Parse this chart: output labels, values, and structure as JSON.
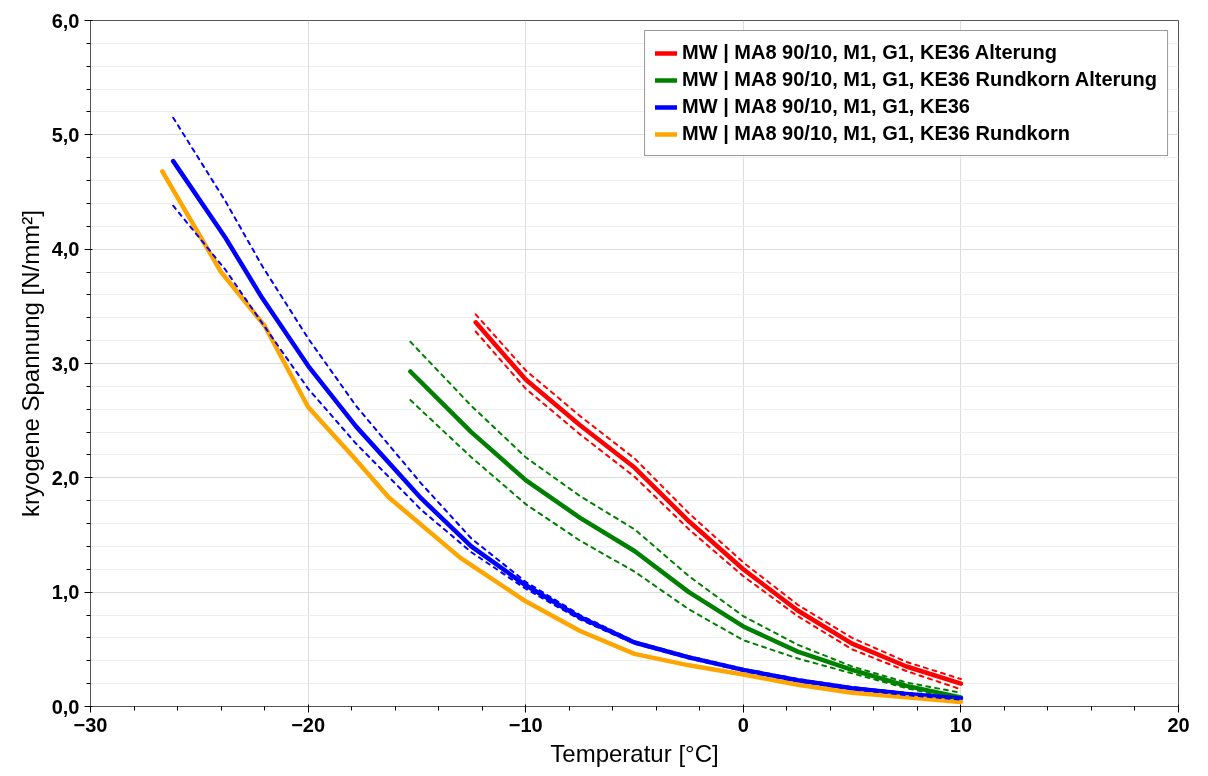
{
  "chart_data": {
    "type": "line",
    "xlabel": "Temperatur [°C]",
    "ylabel": "kryogene Spannung [N/mm²]",
    "xlim": [
      -30,
      20
    ],
    "ylim": [
      0,
      6
    ],
    "xticks": [
      -30,
      -20,
      -10,
      0,
      10,
      20
    ],
    "yticks": [
      {
        "value": 0,
        "label": "0,0"
      },
      {
        "value": 1,
        "label": "1,0"
      },
      {
        "value": 2,
        "label": "2,0"
      },
      {
        "value": 3,
        "label": "3,0"
      },
      {
        "value": 4,
        "label": "4,0"
      },
      {
        "value": 5,
        "label": "5,0"
      },
      {
        "value": 6,
        "label": "6,0"
      }
    ],
    "grid": true,
    "legend": "top right",
    "line_style": "solid",
    "marker": "none",
    "series": [
      {
        "name": "MW | MA8 90/10, M1, G1, KE36 Alterung",
        "color": "#ff0000",
        "x": [
          -12.3,
          -10,
          -7.5,
          -5,
          -2.5,
          0,
          2.5,
          5,
          7.5,
          10
        ],
        "values": [
          3.36,
          2.86,
          2.46,
          2.09,
          1.62,
          1.2,
          0.84,
          0.55,
          0.35,
          0.2
        ]
      },
      {
        "color": "#ff0000",
        "line_style": "dashed",
        "x": [
          -12.3,
          -10,
          -7.5,
          -5,
          -2.5,
          0,
          2.5,
          5,
          7.5,
          10
        ],
        "values": [
          3.43,
          2.94,
          2.54,
          2.17,
          1.69,
          1.26,
          0.89,
          0.6,
          0.39,
          0.24
        ]
      },
      {
        "color": "#ff0000",
        "line_style": "dashed",
        "x": [
          -12.3,
          -10,
          -7.5,
          -5,
          -2.5,
          0,
          2.5,
          5,
          7.5,
          10
        ],
        "values": [
          3.28,
          2.78,
          2.38,
          2.01,
          1.55,
          1.14,
          0.79,
          0.5,
          0.31,
          0.15
        ]
      },
      {
        "name": "MW | MA8 90/10, M1, G1, KE36 Rundkorn Alterung",
        "color": "#008000",
        "x": [
          -15.3,
          -12.5,
          -10,
          -7.5,
          -5,
          -2.5,
          0,
          2.5,
          5,
          7.5,
          10
        ],
        "values": [
          2.93,
          2.4,
          1.98,
          1.65,
          1.36,
          1.0,
          0.7,
          0.48,
          0.32,
          0.18,
          0.08
        ]
      },
      {
        "color": "#008000",
        "line_style": "dashed",
        "x": [
          -15.3,
          -12.5,
          -10,
          -7.5,
          -5,
          -2.5,
          0,
          2.5,
          5,
          7.5,
          10
        ],
        "values": [
          3.19,
          2.63,
          2.18,
          1.84,
          1.55,
          1.14,
          0.79,
          0.54,
          0.35,
          0.21,
          0.12
        ]
      },
      {
        "color": "#008000",
        "line_style": "dashed",
        "x": [
          -15.3,
          -12.5,
          -10,
          -7.5,
          -5,
          -2.5,
          0,
          2.5,
          5,
          7.5,
          10
        ],
        "values": [
          2.68,
          2.18,
          1.77,
          1.45,
          1.18,
          0.85,
          0.58,
          0.42,
          0.29,
          0.16,
          0.06
        ]
      },
      {
        "name": "MW | MA8 90/10, M1, G1, KE36",
        "color": "#0000ff",
        "x": [
          -26.2,
          -23.8,
          -22.1,
          -20,
          -17.8,
          -14.8,
          -12.5,
          -10,
          -7.5,
          -5,
          -2.5,
          0,
          2.5,
          5,
          7.5,
          10
        ],
        "values": [
          4.77,
          4.1,
          3.57,
          2.98,
          2.45,
          1.82,
          1.4,
          1.06,
          0.78,
          0.56,
          0.43,
          0.32,
          0.23,
          0.16,
          0.11,
          0.07
        ]
      },
      {
        "color": "#0000ff",
        "line_style": "dashed",
        "x": [
          -26.2,
          -23.8,
          -22.1,
          -20,
          -17.8,
          -14.8,
          -12.5,
          -10,
          -7.5,
          -5,
          -2.5,
          0,
          2.5,
          5,
          7.5,
          10
        ],
        "values": [
          5.15,
          4.42,
          3.85,
          3.22,
          2.63,
          1.95,
          1.47,
          1.09,
          0.8,
          0.57,
          0.44,
          0.33,
          0.24,
          0.17,
          0.12,
          0.08
        ]
      },
      {
        "color": "#0000ff",
        "line_style": "dashed",
        "x": [
          -26.2,
          -23.8,
          -22.1,
          -20,
          -17.8,
          -14.8,
          -12.5,
          -10,
          -7.5,
          -5,
          -2.5,
          0,
          2.5,
          5,
          7.5,
          10
        ],
        "values": [
          4.38,
          3.82,
          3.35,
          2.78,
          2.3,
          1.72,
          1.35,
          1.03,
          0.76,
          0.55,
          0.42,
          0.31,
          0.22,
          0.15,
          0.1,
          0.06
        ]
      },
      {
        "name": "MW | MA8 90/10, M1, G1, KE36 Rundkorn",
        "color": "#ffa500",
        "x": [
          -26.7,
          -24,
          -22,
          -20,
          -18,
          -16.3,
          -13,
          -10,
          -7.5,
          -5,
          -2.5,
          0,
          2.5,
          5,
          7.5,
          10
        ],
        "values": [
          4.68,
          3.8,
          3.33,
          2.62,
          2.2,
          1.83,
          1.3,
          0.92,
          0.66,
          0.46,
          0.36,
          0.28,
          0.19,
          0.12,
          0.08,
          0.04
        ]
      }
    ]
  }
}
